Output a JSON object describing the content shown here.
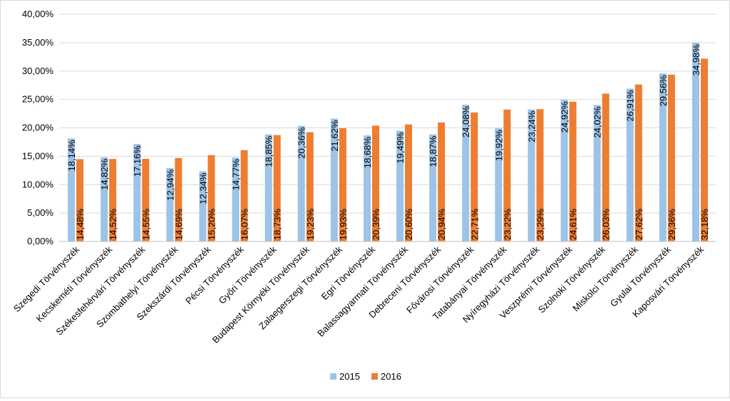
{
  "chart_data": {
    "type": "bar",
    "title": "",
    "xlabel": "",
    "ylabel": "",
    "ylim": [
      0,
      40
    ],
    "yticks": [
      "0,00%",
      "5,00%",
      "10,00%",
      "15,00%",
      "20,00%",
      "25,00%",
      "30,00%",
      "35,00%",
      "40,00%"
    ],
    "grid": true,
    "legend": "bottom",
    "categories": [
      "Szegedi Törvényszék",
      "Kecskeméti Törvényszék",
      "Székesfehérvári Törvényszék",
      "Szombathelyi Törvényszék",
      "Szekszárdi Törvényszék",
      "Pécsi Törvényszék",
      "Győri Törvényszék",
      "Budapest Környéki Törvényszék",
      "Zalaegerszegi Törvényszék",
      "Egri Törvényszék",
      "Balassagyarmati Törvényszék",
      "Debreceni Törvényszék",
      "Fővárosi Törvényszék",
      "Tatabányai Törvényszék",
      "Nyíregyházi Törvényszék",
      "Veszprémi Törvényszék",
      "Szolnoki Törvényszék",
      "Miskolci Törvényszék",
      "Gyulai Törvényszék",
      "Kaposvári Törvényszék"
    ],
    "series": [
      {
        "name": "2015",
        "color": "#9dc3e6",
        "values": [
          18.14,
          14.82,
          17.16,
          12.94,
          12.34,
          14.77,
          18.85,
          20.36,
          21.62,
          18.68,
          19.49,
          18.87,
          24.08,
          19.92,
          23.24,
          24.92,
          24.02,
          26.91,
          29.56,
          34.98
        ],
        "labels": [
          "18,14%",
          "14,82%",
          "17,16%",
          "12,94%",
          "12,34%",
          "14,77%",
          "18,85%",
          "20,36%",
          "21,62%",
          "18,68%",
          "19,49%",
          "18,87%",
          "24,08%",
          "19,92%",
          "23,24%",
          "24,92%",
          "24,02%",
          "26,91%",
          "29,56%",
          "34,98%"
        ]
      },
      {
        "name": "2016",
        "color": "#ed7d31",
        "values": [
          14.48,
          14.52,
          14.55,
          14.69,
          15.2,
          16.07,
          18.73,
          19.23,
          19.93,
          20.39,
          20.6,
          20.94,
          22.71,
          23.22,
          23.29,
          24.61,
          26.03,
          27.62,
          29.36,
          32.18
        ],
        "labels": [
          "14,48%",
          "14,52%",
          "14,55%",
          "14,69%",
          "15,20%",
          "16,07%",
          "18,73%",
          "19,23%",
          "19,93%",
          "20,39%",
          "20,60%",
          "20,94%",
          "22,71%",
          "23,22%",
          "23,29%",
          "24,61%",
          "26,03%",
          "27,62%",
          "29,36%",
          "32,18%"
        ]
      }
    ],
    "grid_color": "#d9d9d9"
  }
}
